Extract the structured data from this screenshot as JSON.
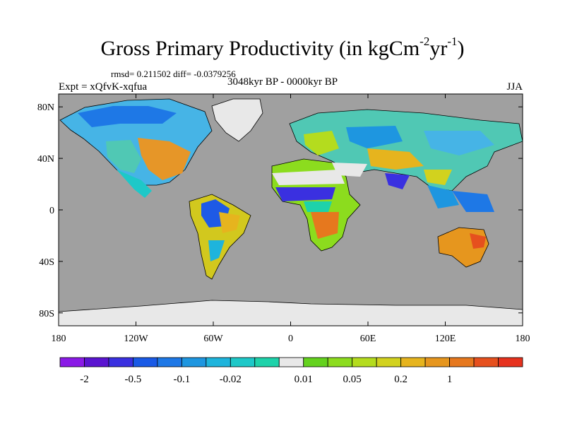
{
  "title": {
    "main": "Gross Primary Productivity (in kgCm",
    "exp1": "-2",
    "unit2": "yr",
    "exp2": "-1",
    "close": ")"
  },
  "stats": "rmsd= 0.211502 diff= -0.0379256",
  "expt": "Expt = xQfvK-xqfua",
  "period": "3048kyr BP - 0000kyr BP",
  "season": "JJA",
  "map": {
    "projection": "cylindrical-equidistant",
    "lon_range": [
      -180,
      180
    ],
    "lat_range": [
      -90,
      90
    ],
    "ocean_color": "#a0a0a0",
    "missing_color": "#e8e8e8",
    "lat_ticks": [
      {
        "label": "80N",
        "lat": 80
      },
      {
        "label": "40N",
        "lat": 40
      },
      {
        "label": "0",
        "lat": 0
      },
      {
        "label": "40S",
        "lat": -40
      },
      {
        "label": "80S",
        "lat": -80
      }
    ],
    "lon_ticks": [
      {
        "label": "180",
        "lon": -180
      },
      {
        "label": "120W",
        "lon": -120
      },
      {
        "label": "60W",
        "lon": -60
      },
      {
        "label": "0",
        "lon": 0
      },
      {
        "label": "60E",
        "lon": 60
      },
      {
        "label": "120E",
        "lon": 120
      },
      {
        "label": "180",
        "lon": 180
      }
    ]
  },
  "colorbar": {
    "colors": [
      "#8a1ae6",
      "#5a14d0",
      "#3a30e0",
      "#1a5ae6",
      "#1e78e6",
      "#1e96e0",
      "#1eb4dc",
      "#1ec8c8",
      "#1ed2aa",
      "#e8e8e8",
      "#64d21e",
      "#8cdc1e",
      "#b4dc1e",
      "#d2d21e",
      "#e6b41e",
      "#e6961e",
      "#e6781e",
      "#e6501e",
      "#e6321e"
    ],
    "labels": [
      {
        "text": "-2",
        "after_box": 1
      },
      {
        "text": "-0.5",
        "after_box": 3
      },
      {
        "text": "-0.1",
        "after_box": 5
      },
      {
        "text": "-0.02",
        "after_box": 7
      },
      {
        "text": "0.01",
        "after_box": 10
      },
      {
        "text": "0.05",
        "after_box": 12
      },
      {
        "text": "0.2",
        "after_box": 14
      },
      {
        "text": "1",
        "after_box": 16
      }
    ]
  }
}
